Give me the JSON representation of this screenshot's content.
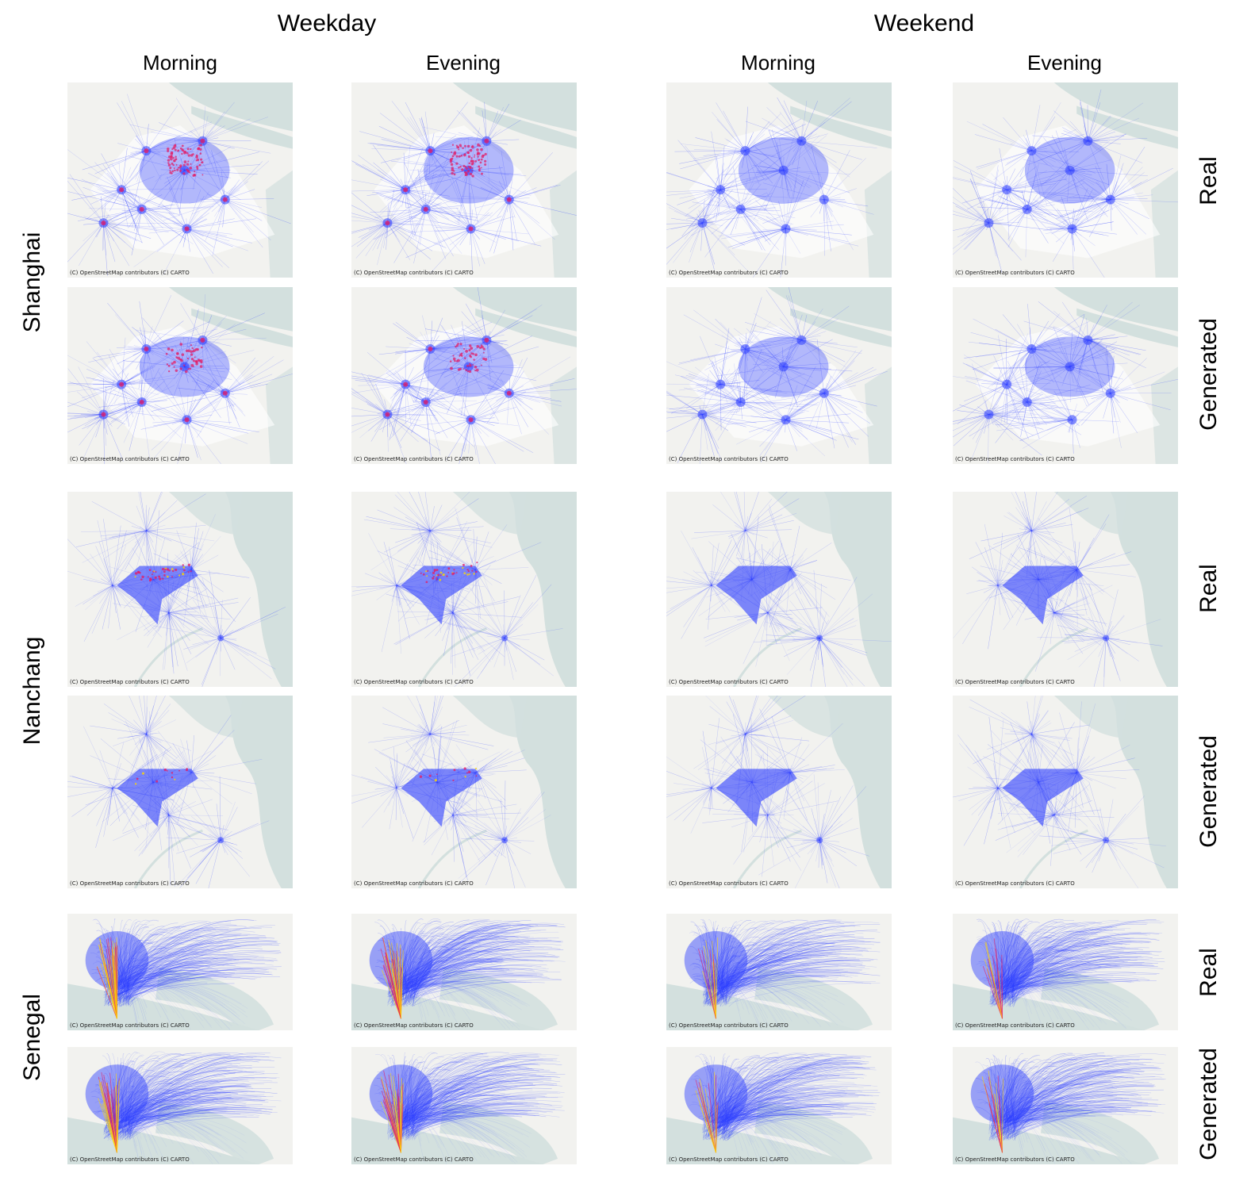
{
  "groups": {
    "weekday": "Weekday",
    "weekend": "Weekend"
  },
  "columns": {
    "weekday_morning": "Morning",
    "weekday_evening": "Evening",
    "weekend_morning": "Morning",
    "weekend_evening": "Evening"
  },
  "cities": {
    "shanghai": "Shanghai",
    "nanchang": "Nanchang",
    "senegal": "Senegal"
  },
  "row_labels": {
    "real": "Real",
    "generated": "Generated"
  },
  "attribution": "(C) OpenStreetMap contributors (C) CARTO",
  "colors": {
    "land": "#f2f2ef",
    "water": "#d3e0de",
    "flow": "#2b3cff",
    "flow_hot": "#e0206a",
    "flow_peak": "#ffd700"
  }
}
